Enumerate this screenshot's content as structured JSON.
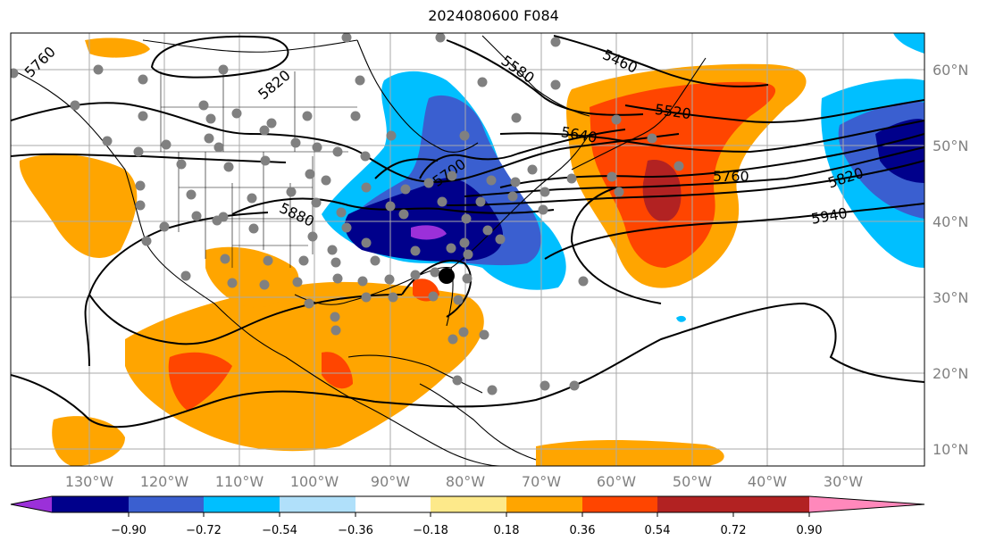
{
  "title": "2024080600 F084",
  "map": {
    "longitude_labels": [
      "130°W",
      "120°W",
      "110°W",
      "100°W",
      "90°W",
      "80°W",
      "70°W",
      "60°W",
      "50°W",
      "40°W",
      "30°W"
    ],
    "latitude_labels": [
      "60°N",
      "50°N",
      "40°N",
      "30°N",
      "20°N",
      "10°N"
    ],
    "contour_labels": [
      "5760",
      "5820",
      "5580",
      "5460",
      "5520",
      "5640",
      "5700",
      "5880",
      "5760",
      "5820",
      "5940"
    ],
    "storm_marker": "storm-center"
  },
  "colorbar": {
    "tick_labels": [
      "−0.90",
      "−0.72",
      "−0.54",
      "−0.36",
      "−0.18",
      "0.18",
      "0.36",
      "0.54",
      "0.72",
      "0.90"
    ],
    "colors": [
      "#9b30d9",
      "#00008b",
      "#3a5fd0",
      "#00bfff",
      "#b0e0fa",
      "#ffffff",
      "#fde98a",
      "#ffa500",
      "#ff4500",
      "#b22222",
      "#ff88bb"
    ]
  }
}
